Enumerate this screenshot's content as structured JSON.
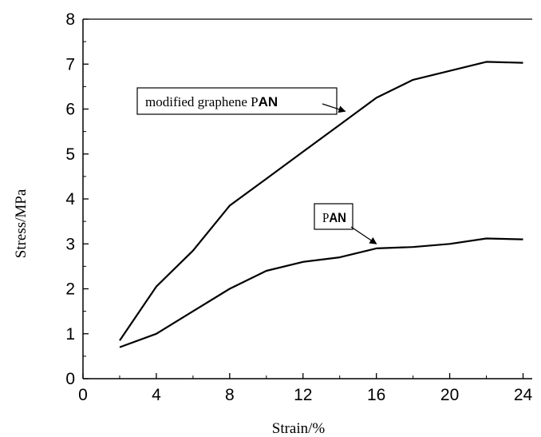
{
  "chart_data": {
    "type": "line",
    "title": "",
    "xlabel": "Strain/%",
    "ylabel": "Stress/MPa",
    "xlim": [
      0,
      24.5
    ],
    "ylim": [
      0,
      8
    ],
    "xticks": [
      0,
      4,
      8,
      12,
      16,
      20,
      24
    ],
    "yticks": [
      0,
      1,
      2,
      3,
      4,
      5,
      6,
      7,
      8
    ],
    "grid": false,
    "legend": "none",
    "series": [
      {
        "key": "modified",
        "x": [
          2,
          4,
          6,
          8,
          10,
          12,
          14,
          16,
          18,
          20,
          22,
          24
        ],
        "y": [
          0.85,
          2.05,
          2.85,
          3.85,
          4.45,
          5.05,
          5.65,
          6.25,
          6.65,
          6.85,
          7.05,
          7.03
        ]
      },
      {
        "key": "pan",
        "x": [
          2,
          4,
          6,
          8,
          10,
          12,
          14,
          16,
          18,
          20,
          22,
          24
        ],
        "y": [
          0.7,
          1.0,
          1.5,
          2.0,
          2.4,
          2.6,
          2.7,
          2.9,
          2.93,
          3.0,
          3.12,
          3.1
        ]
      }
    ],
    "annotations": [
      {
        "text_prefix": "modified graphene P",
        "text_bold": "AN",
        "target": "modified",
        "point": [
          14.3,
          5.95
        ]
      },
      {
        "text_prefix": "P",
        "text_bold": "AN",
        "target": "pan",
        "point": [
          16.0,
          3.0
        ]
      }
    ]
  }
}
